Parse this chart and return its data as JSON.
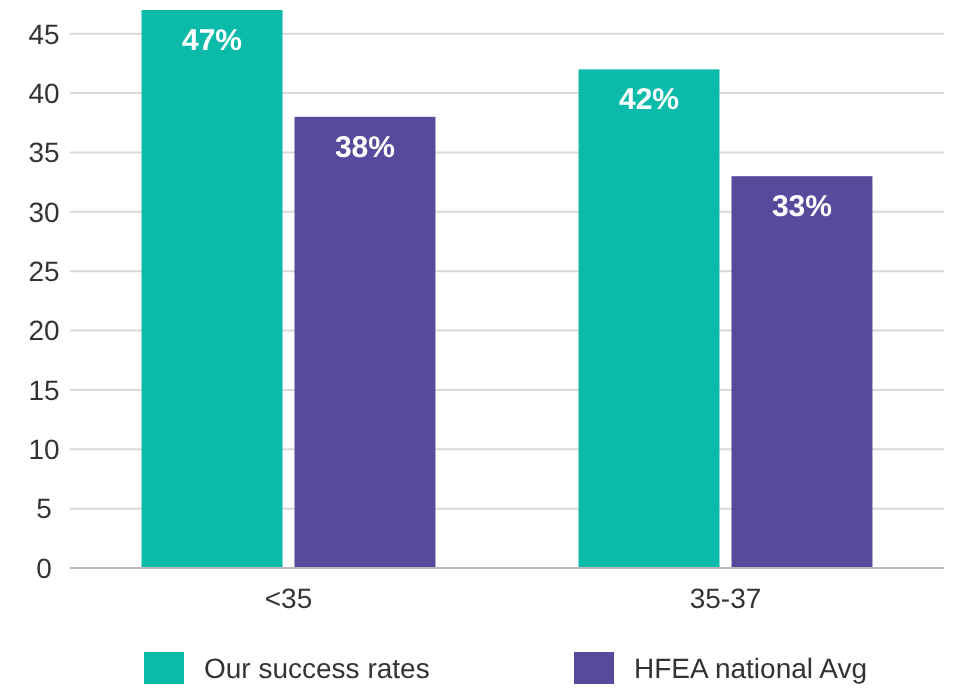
{
  "chart_data": {
    "type": "bar",
    "categories": [
      "<35",
      "35-37"
    ],
    "series": [
      {
        "name": "Our success rates",
        "color": "#0bbaa9",
        "values": [
          47,
          42
        ],
        "value_labels": [
          "47%",
          "42%"
        ]
      },
      {
        "name": "HFEA national Avg",
        "color": "#574a9c",
        "values": [
          38,
          33
        ],
        "value_labels": [
          "38%",
          "33%"
        ]
      }
    ],
    "ylim": [
      0,
      47
    ],
    "yticks": [
      0,
      5,
      10,
      15,
      20,
      25,
      30,
      35,
      40,
      45
    ],
    "grid": "y",
    "legend": "bottom"
  }
}
